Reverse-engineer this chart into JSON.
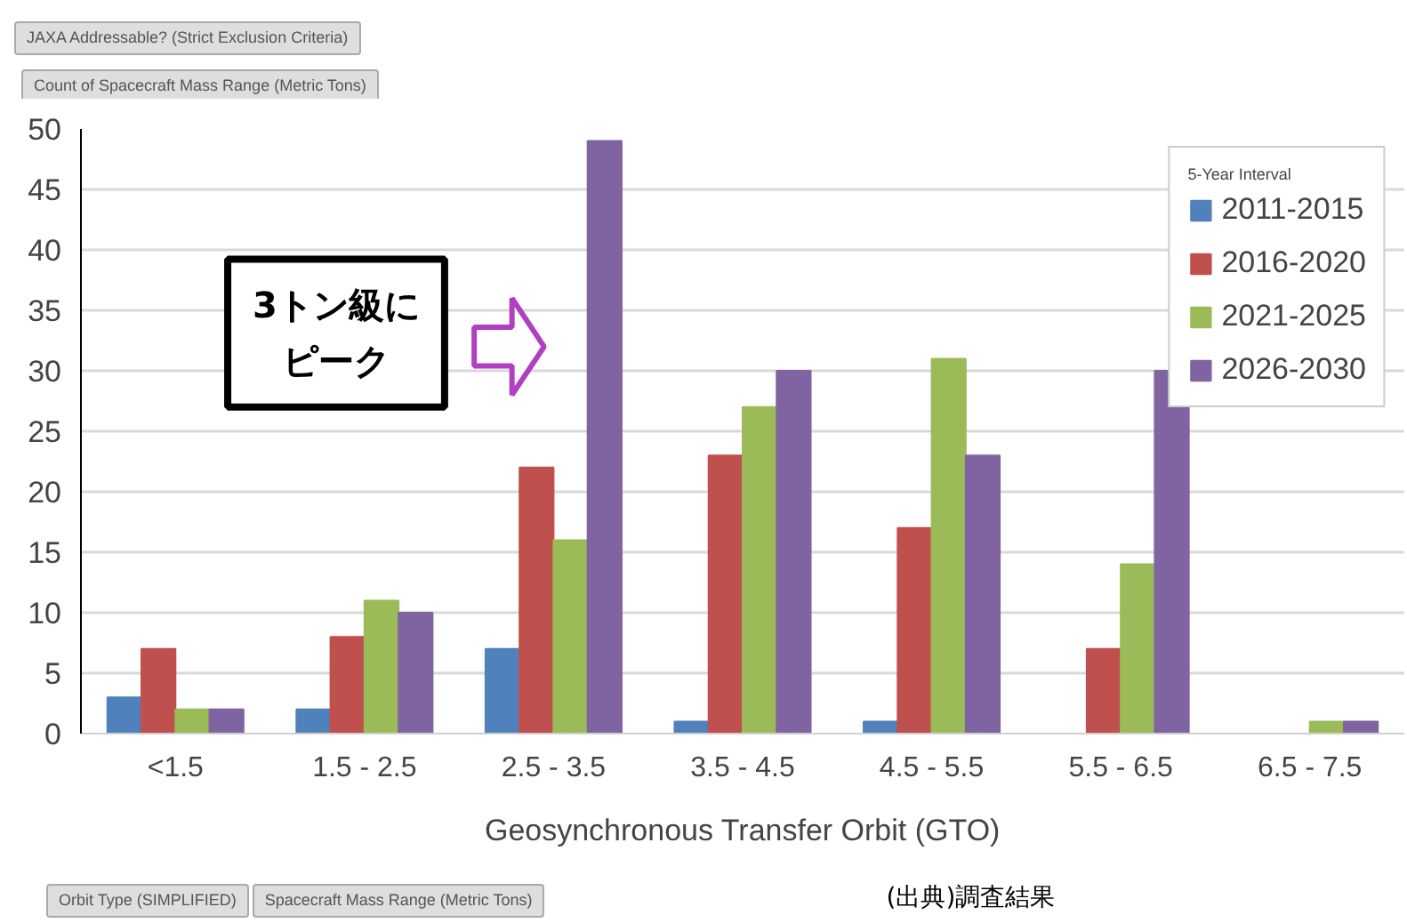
{
  "chart_data": {
    "type": "bar",
    "xlabel": "Geosynchronous Transfer Orbit (GTO)",
    "legend_title": "5-Year Interval",
    "categories": [
      "<1.5",
      "1.5 - 2.5",
      "2.5 - 3.5",
      "3.5 - 4.5",
      "4.5 - 5.5",
      "5.5 - 6.5",
      "6.5 - 7.5"
    ],
    "series": [
      {
        "name": "2011-2015",
        "color": "#4f81bd",
        "values": [
          3,
          2,
          7,
          1,
          1,
          0,
          0
        ]
      },
      {
        "name": "2016-2020",
        "color": "#c0504d",
        "values": [
          7,
          8,
          22,
          23,
          17,
          7,
          0
        ]
      },
      {
        "name": "2021-2025",
        "color": "#9bbb59",
        "values": [
          2,
          11,
          16,
          27,
          31,
          14,
          1
        ]
      },
      {
        "name": "2026-2030",
        "color": "#8064a2",
        "values": [
          2,
          10,
          49,
          30,
          23,
          30,
          1
        ]
      }
    ],
    "ylim": [
      0,
      50
    ],
    "yticks": [
      0,
      5,
      10,
      15,
      20,
      25,
      30,
      35,
      40,
      45,
      50
    ],
    "grid": "y",
    "legend": "top right",
    "annotations": [
      "JAXA Addressable? (Strict Exclusion Criteria)",
      "Count of Spacecraft Mass Range (Metric Tons)",
      "3トン級にピーク",
      "Orbit Type (SIMPLIFIED)",
      "Spacecraft Mass Range (Metric Tons)",
      "(出典)調査結果"
    ]
  }
}
